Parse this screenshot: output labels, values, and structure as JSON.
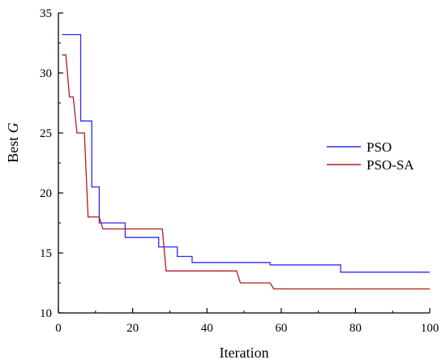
{
  "chart_data": {
    "type": "line",
    "title": "",
    "xlabel": "Iteration",
    "ylabel": "Best G",
    "ylabel_prefix": "Best ",
    "ylabel_italic": "G",
    "xlim": [
      0,
      100
    ],
    "ylim": [
      10,
      35
    ],
    "xticks": [
      0,
      20,
      40,
      60,
      80,
      100
    ],
    "yticks": [
      10,
      15,
      20,
      25,
      30,
      35
    ],
    "grid": false,
    "legend": "right",
    "series": [
      {
        "name": "PSO",
        "color": "#2b2bff",
        "points": [
          [
            1,
            33.2
          ],
          [
            5,
            33.2
          ],
          [
            5,
            33.2
          ],
          [
            6,
            33.2
          ],
          [
            6,
            26.0
          ],
          [
            9,
            26.0
          ],
          [
            9,
            20.5
          ],
          [
            11,
            20.5
          ],
          [
            11,
            17.5
          ],
          [
            18,
            17.5
          ],
          [
            18,
            16.3
          ],
          [
            27,
            16.3
          ],
          [
            27,
            15.5
          ],
          [
            32,
            15.5
          ],
          [
            32,
            14.7
          ],
          [
            36,
            14.7
          ],
          [
            36,
            14.2
          ],
          [
            57,
            14.2
          ],
          [
            57,
            14.0
          ],
          [
            76,
            14.0
          ],
          [
            76,
            13.4
          ],
          [
            100,
            13.4
          ]
        ]
      },
      {
        "name": "PSO-SA",
        "color": "#b01c1c",
        "points": [
          [
            1,
            31.5
          ],
          [
            2,
            31.5
          ],
          [
            3,
            28.0
          ],
          [
            4,
            28.0
          ],
          [
            5,
            25.0
          ],
          [
            7,
            25.0
          ],
          [
            8,
            18.0
          ],
          [
            11,
            18.0
          ],
          [
            12,
            17.0
          ],
          [
            28,
            17.0
          ],
          [
            29,
            13.5
          ],
          [
            48,
            13.5
          ],
          [
            49,
            12.5
          ],
          [
            57,
            12.5
          ],
          [
            58,
            12.0
          ],
          [
            100,
            12.0
          ]
        ]
      }
    ]
  }
}
